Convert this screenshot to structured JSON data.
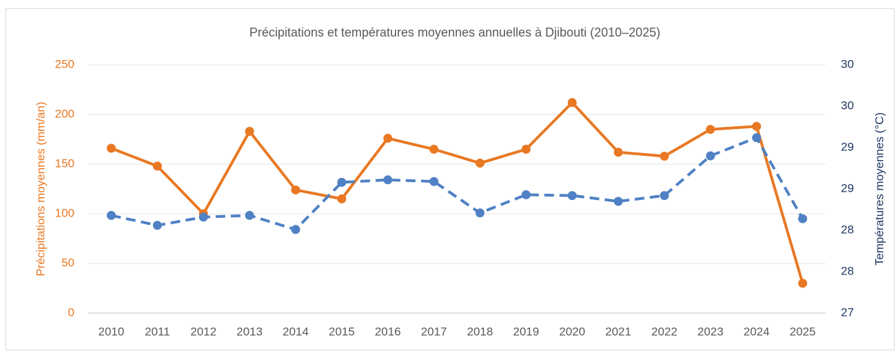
{
  "chart_data": {
    "type": "line",
    "title": "Précipitations et températures moyennes annuelles à Djibouti (2010–2025)",
    "y_label": "Précipitations moyennes (mm/an)",
    "y2_label": "Températures moyennes (°C)",
    "categories": [
      "2010",
      "2011",
      "2012",
      "2013",
      "2014",
      "2015",
      "2016",
      "2017",
      "2018",
      "2019",
      "2020",
      "2021",
      "2022",
      "2023",
      "2024",
      "2025"
    ],
    "series": [
      {
        "name": "Précipitations moyennes (mm/an)",
        "color": "#e97823",
        "dashed": false,
        "values": [
          166,
          148,
          100,
          183,
          124,
          115,
          176,
          165,
          151,
          165,
          212,
          162,
          158,
          185,
          188,
          30
        ]
      },
      {
        "name": "Températures moyennes (°C)",
        "color": "#4f81c4",
        "axis": "y2",
        "dashed": true,
        "values": [
          28.18,
          28.06,
          28.16,
          28.18,
          28.01,
          28.58,
          28.61,
          28.59,
          28.21,
          28.43,
          28.42,
          28.35,
          28.42,
          28.9,
          29.12,
          28.14
        ]
      }
    ],
    "ylim": [
      0,
      250
    ],
    "yticks": [
      0,
      50,
      100,
      150,
      200,
      250
    ],
    "y_color": "#e97823",
    "y2lim": [
      27,
      30
    ],
    "y2ticks": [
      27,
      {
        "value": 27.5,
        "label": "28"
      },
      28,
      {
        "value": 28.5,
        "label": "29"
      },
      29,
      {
        "value": 29.5,
        "label": "30"
      },
      30
    ],
    "y2_color": "#1f3864",
    "grid": true
  }
}
